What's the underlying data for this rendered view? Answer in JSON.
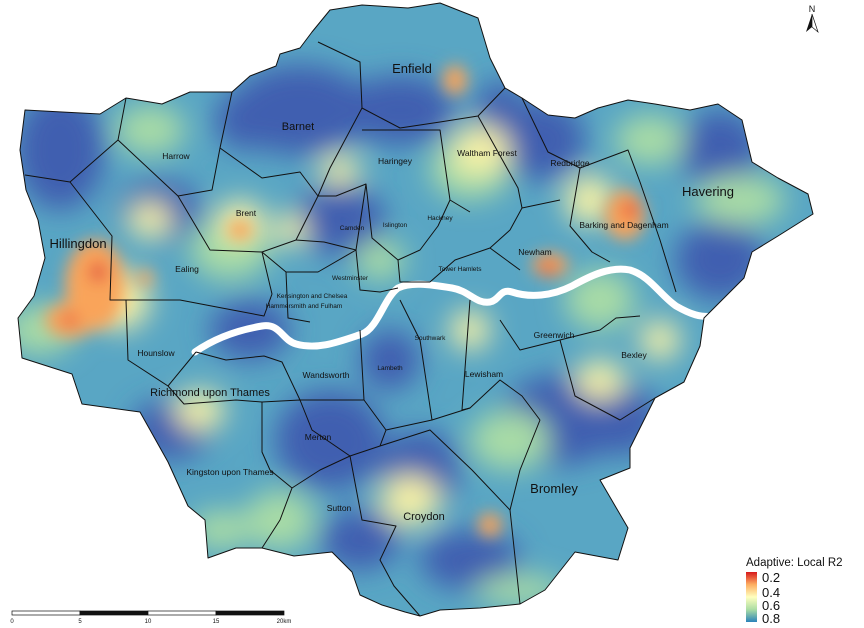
{
  "north_arrow_label": "N",
  "legend": {
    "title": "Adaptive: Local R2",
    "values": [
      "0.2",
      "0.4",
      "0.6",
      "0.8"
    ],
    "colors": [
      "#d7191c",
      "#fdae61",
      "#ffffbf",
      "#abdda4",
      "#2b83ba"
    ]
  },
  "scale_bar": {
    "ticks": [
      "0",
      "5",
      "10",
      "15",
      "20km"
    ]
  },
  "colors": {
    "high_r2": "#3f5fb0",
    "mid_high": "#59a6c4",
    "mid": "#a8dba6",
    "low_mid": "#f6f1a6",
    "low": "#f9a45a",
    "lowest": "#e2463c",
    "boundary": "#111111",
    "river": "#ffffff"
  },
  "boroughs": [
    {
      "name": "Enfield"
    },
    {
      "name": "Barnet"
    },
    {
      "name": "Harrow"
    },
    {
      "name": "Haringey"
    },
    {
      "name": "Waltham Forest"
    },
    {
      "name": "Redbridge"
    },
    {
      "name": "Havering"
    },
    {
      "name": "Brent"
    },
    {
      "name": "Camden"
    },
    {
      "name": "Islington"
    },
    {
      "name": "Hackney"
    },
    {
      "name": "Barking and Dagenham"
    },
    {
      "name": "Hillingdon"
    },
    {
      "name": "Ealing"
    },
    {
      "name": "Newham"
    },
    {
      "name": "Westminster"
    },
    {
      "name": "Tower Hamlets"
    },
    {
      "name": "Kensington and Chelsea"
    },
    {
      "name": "Hammersmith and Fulham"
    },
    {
      "name": "Hounslow"
    },
    {
      "name": "Southwark"
    },
    {
      "name": "Greenwich"
    },
    {
      "name": "Bexley"
    },
    {
      "name": "Richmond upon Thames"
    },
    {
      "name": "Wandsworth"
    },
    {
      "name": "Lambeth"
    },
    {
      "name": "Lewisham"
    },
    {
      "name": "Merton"
    },
    {
      "name": "Kingston upon Thames"
    },
    {
      "name": "Bromley"
    },
    {
      "name": "Sutton"
    },
    {
      "name": "Croydon"
    }
  ]
}
